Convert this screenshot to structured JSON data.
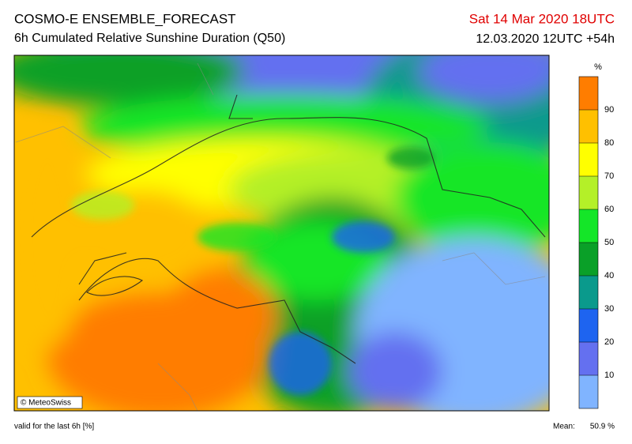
{
  "header": {
    "title": "COSMO-E ENSEMBLE_FORECAST",
    "subtitle": "6h Cumulated Relative Sunshine Duration (Q50)",
    "valid_time": "Sat 14 Mar 2020 18UTC",
    "run": "12.03.2020 12UTC +54h"
  },
  "colorbar": {
    "unit": "%",
    "ticks": [
      10,
      20,
      30,
      40,
      50,
      60,
      70,
      80,
      90
    ],
    "colors": [
      "#80b4ff",
      "#6470f0",
      "#1e64f0",
      "#0a9a8c",
      "#0aa028",
      "#14e628",
      "#b4f028",
      "#ffff00",
      "#ffc000",
      "#ff7d00"
    ]
  },
  "map": {
    "credit": "© MeteoSwiss"
  },
  "footer": {
    "validity": "valid for the last 6h [%]",
    "mean_label": "Mean:",
    "mean_value": "50.9 %"
  }
}
